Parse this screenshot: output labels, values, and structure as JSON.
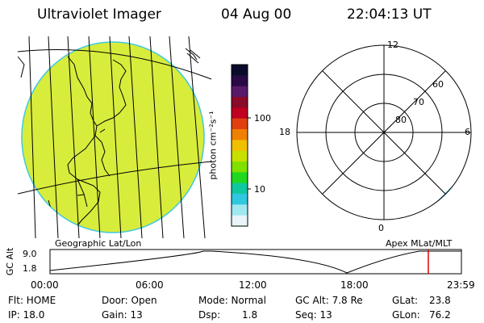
{
  "header": {
    "instrument": "Ultraviolet Imager",
    "date": "04 Aug 00",
    "time": "22:04:13 UT"
  },
  "colorbar": {
    "unit_label": "photon cm⁻²s⁻¹",
    "tick_100": "100",
    "tick_10": "10",
    "colors": [
      "#0a0a2a",
      "#2a0a44",
      "#5a1a6a",
      "#8a0a2a",
      "#c00020",
      "#e04010",
      "#f08000",
      "#f0c000",
      "#c8e000",
      "#80e000",
      "#20d820",
      "#10c8a0",
      "#30c8e0",
      "#a0e8f0",
      "#e8f4f8"
    ]
  },
  "left_panel": {
    "caption": "Geographic Lat/Lon",
    "fill_color": "#d8ec3c",
    "edge_color": "#40c8e0"
  },
  "polar_plot": {
    "caption": "Apex MLat/MLT",
    "mlt_top": "12",
    "mlt_left": "18",
    "mlt_right": "6",
    "mlt_bottom": "0",
    "lat_60": "60",
    "lat_70": "70",
    "lat_80": "80"
  },
  "altitude_plot": {
    "ylabel": "GC Alt",
    "y_high": "9.0",
    "y_low": "1.8",
    "x_ticks": [
      "00:00",
      "06:00",
      "12:00",
      "18:00",
      "23:59"
    ],
    "current_hour": 22.07,
    "marker_color": "#e00000"
  },
  "status": {
    "flt": "Flt: HOME",
    "ip": "IP: 18.0",
    "door": "Door: Open",
    "gain": "Gain: 13",
    "mode": "Mode: Normal",
    "dsp": "Dsp:",
    "dsp_value": "1.8",
    "gc_alt": "GC Alt: 7.8 Re",
    "seq": "Seq: 13",
    "glat": "GLat:",
    "glat_value": "23.8",
    "glon": "GLon:",
    "glon_value": "76.2"
  }
}
